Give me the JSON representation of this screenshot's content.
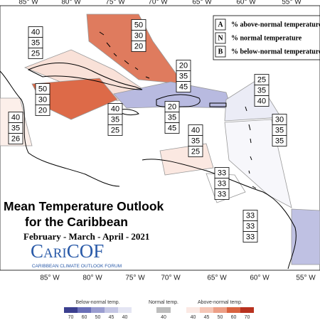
{
  "longitude_labels_top": [
    "85° W",
    "80° W",
    "75° W",
    "70° W",
    "65° W",
    "60° W",
    "55° W"
  ],
  "longitude_labels_bottom": [
    "85° W",
    "80° W",
    "75° W",
    "70° W",
    "65° W",
    "60° W",
    "55° W"
  ],
  "key": {
    "rows": [
      {
        "letter": "A",
        "text": "% above-normal temperature"
      },
      {
        "letter": "N",
        "text": "% normal temperature"
      },
      {
        "letter": "B",
        "text": "% below-normal temperature"
      }
    ]
  },
  "regions": [
    {
      "above": 50,
      "normal": 30,
      "below": 20
    },
    {
      "above": 40,
      "normal": 35,
      "below": 25
    },
    {
      "above": 50,
      "normal": 30,
      "below": 20
    },
    {
      "above": 20,
      "normal": 35,
      "below": 45
    },
    {
      "above": 25,
      "normal": 35,
      "below": 40
    },
    {
      "above": 40,
      "normal": 35,
      "below": 25
    },
    {
      "above": 20,
      "normal": 35,
      "below": 45
    },
    {
      "above": 40,
      "normal": 35,
      "below": 26
    },
    {
      "above": 30,
      "normal": 35,
      "below": 35
    },
    {
      "above": 40,
      "normal": 35,
      "below": 25
    },
    {
      "above": 33,
      "normal": 33,
      "below": 33
    },
    {
      "above": 33,
      "normal": 33,
      "below": 33
    }
  ],
  "title": {
    "line1": "Mean Temperature Outlook",
    "line2": "for the Caribbean",
    "period": "February - March - April - 2021"
  },
  "logo": {
    "name": "CariCOF",
    "tagline": "CARIBBEAN CLIMATE OUTLOOK FORUM"
  },
  "colorbar": {
    "below": {
      "label": "Below-normal temp.",
      "ticks": [
        70,
        60,
        50,
        45,
        40
      ]
    },
    "normal": {
      "label": "Normal temp.",
      "ticks": [
        40
      ]
    },
    "above": {
      "label": "Above-normal temp.",
      "ticks": [
        40,
        45,
        50,
        60,
        70
      ]
    }
  }
}
